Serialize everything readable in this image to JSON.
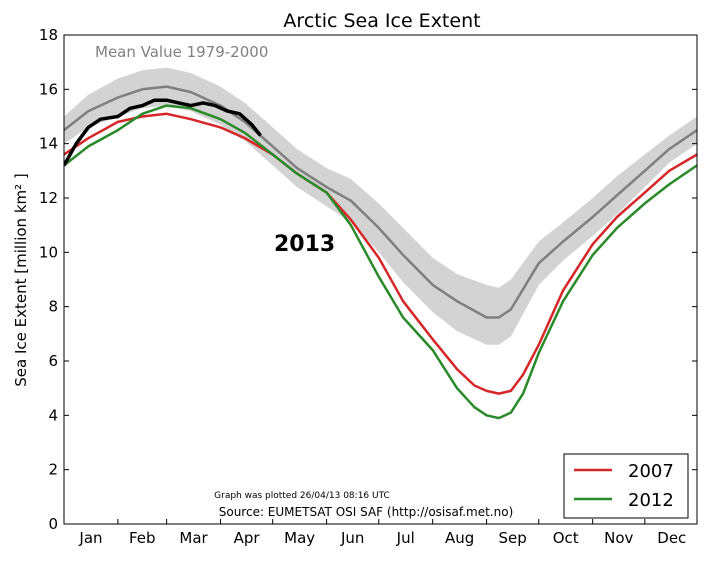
{
  "chart_data": {
    "type": "line",
    "title": "Arctic Sea Ice Extent",
    "xlabel": "",
    "ylabel": "Sea Ice Extent [million km² ]",
    "ylim": [
      0,
      18
    ],
    "xlim": [
      1,
      365
    ],
    "yticks": [
      0,
      2,
      4,
      6,
      8,
      10,
      12,
      14,
      16,
      18
    ],
    "months": [
      "Jan",
      "Feb",
      "Mar",
      "Apr",
      "May",
      "Jun",
      "Jul",
      "Aug",
      "Sep",
      "Oct",
      "Nov",
      "Dec"
    ],
    "grid": false,
    "legend_position": "bottom-right",
    "mean_label": "Mean Value 1979-2000",
    "year_label": "2013",
    "plotted_note": "Graph was plotted 26/04/13 08:16 UTC",
    "source_note": "Source: EUMETSAT OSI SAF (http://osisaf.met.no)",
    "mean": {
      "color": "#7f7f7f",
      "band_color": "#d3d3d3",
      "x": [
        1,
        15,
        32,
        46,
        60,
        74,
        91,
        105,
        121,
        135,
        152,
        166,
        182,
        196,
        213,
        227,
        244,
        251,
        258,
        274,
        288,
        305,
        319,
        335,
        349,
        365
      ],
      "y": [
        14.5,
        15.2,
        15.7,
        16.0,
        16.1,
        15.9,
        15.4,
        14.8,
        13.9,
        13.1,
        12.4,
        11.9,
        10.9,
        9.9,
        8.8,
        8.2,
        7.6,
        7.6,
        7.9,
        9.6,
        10.4,
        11.3,
        12.1,
        13.0,
        13.8,
        14.5
      ],
      "upper": [
        15.0,
        15.8,
        16.4,
        16.7,
        16.8,
        16.6,
        16.1,
        15.5,
        14.6,
        13.8,
        13.1,
        12.7,
        11.8,
        10.9,
        9.8,
        9.2,
        8.8,
        8.7,
        9.0,
        10.4,
        11.1,
        12.0,
        12.8,
        13.6,
        14.3,
        15.0
      ],
      "lower": [
        14.0,
        14.6,
        15.0,
        15.3,
        15.4,
        15.2,
        14.7,
        14.1,
        13.2,
        12.4,
        11.7,
        11.1,
        10.0,
        8.9,
        7.8,
        7.1,
        6.6,
        6.6,
        6.9,
        8.8,
        9.7,
        10.6,
        11.4,
        12.4,
        13.3,
        14.0
      ]
    },
    "series": [
      {
        "name": "2007",
        "color": "#d62728",
        "x": [
          1,
          15,
          32,
          46,
          60,
          74,
          91,
          105,
          121,
          135,
          152,
          166,
          182,
          196,
          213,
          227,
          237,
          244,
          251,
          258,
          265,
          274,
          288,
          305,
          319,
          335,
          349,
          365
        ],
        "y": [
          13.6,
          14.2,
          14.8,
          15.0,
          15.1,
          14.9,
          14.6,
          14.2,
          13.6,
          12.9,
          12.2,
          11.2,
          9.8,
          8.2,
          6.8,
          5.7,
          5.1,
          4.9,
          4.8,
          4.9,
          5.5,
          6.6,
          8.6,
          10.3,
          11.3,
          12.2,
          13.0,
          13.6
        ]
      },
      {
        "name": "2012",
        "color": "#2a8a2a",
        "x": [
          1,
          15,
          32,
          46,
          60,
          74,
          91,
          105,
          121,
          135,
          152,
          166,
          182,
          196,
          213,
          227,
          237,
          244,
          251,
          258,
          265,
          274,
          288,
          305,
          319,
          335,
          349,
          365
        ],
        "y": [
          13.2,
          13.9,
          14.5,
          15.1,
          15.4,
          15.3,
          14.9,
          14.4,
          13.6,
          12.9,
          12.2,
          11.0,
          9.1,
          7.6,
          6.4,
          5.0,
          4.3,
          4.0,
          3.9,
          4.1,
          4.8,
          6.3,
          8.2,
          9.9,
          10.9,
          11.8,
          12.5,
          13.2
        ]
      },
      {
        "name": "2013",
        "color": "#000000",
        "x": [
          1,
          8,
          15,
          22,
          32,
          39,
          46,
          53,
          60,
          67,
          74,
          81,
          88,
          95,
          102,
          109,
          114
        ],
        "y": [
          13.2,
          14.0,
          14.6,
          14.9,
          15.0,
          15.3,
          15.4,
          15.6,
          15.6,
          15.5,
          15.4,
          15.5,
          15.4,
          15.2,
          15.1,
          14.7,
          14.3
        ]
      }
    ]
  }
}
